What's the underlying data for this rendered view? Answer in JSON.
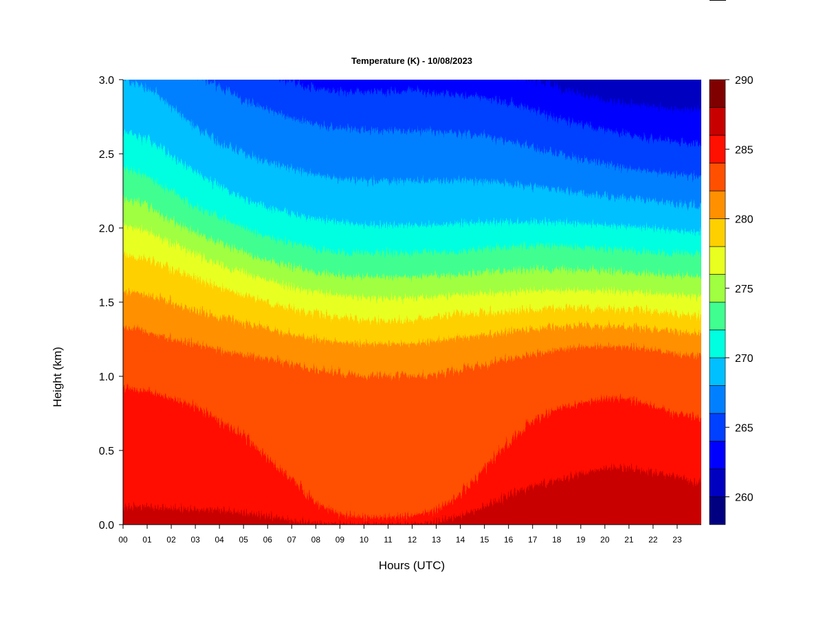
{
  "chart_data": {
    "type": "heatmap",
    "title": "Temperature (K) - 10/08/2023",
    "xlabel": "Hours (UTC)",
    "ylabel": "Height (km)",
    "x_ticks": [
      "00",
      "01",
      "02",
      "03",
      "04",
      "05",
      "06",
      "07",
      "08",
      "09",
      "10",
      "11",
      "12",
      "13",
      "14",
      "15",
      "16",
      "17",
      "18",
      "19",
      "20",
      "21",
      "22",
      "23"
    ],
    "x_range": [
      0,
      24
    ],
    "y_ticks": [
      "0.0",
      "0.5",
      "1.0",
      "1.5",
      "2.0",
      "2.5",
      "3.0"
    ],
    "y_range": [
      0,
      3.0
    ],
    "colorbar": {
      "label_values": [
        "260",
        "265",
        "270",
        "275",
        "280",
        "285",
        "290"
      ],
      "range": [
        258,
        290
      ],
      "levels": [
        258,
        260,
        262,
        264,
        266,
        268,
        270,
        272,
        274,
        276,
        278,
        280,
        282,
        284,
        286,
        288,
        290
      ],
      "colors": [
        "#000080",
        "#0000c0",
        "#0000ff",
        "#0040ff",
        "#0080ff",
        "#00c0ff",
        "#00ffe0",
        "#40ff90",
        "#a0ff40",
        "#e8ff20",
        "#ffd000",
        "#ff9000",
        "#ff5000",
        "#ff1000",
        "#c80000",
        "#800000"
      ]
    },
    "isotherm_heights_km": {
      "hours": [
        0,
        1,
        2,
        3,
        4,
        5,
        6,
        7,
        8,
        9,
        10,
        11,
        12,
        13,
        14,
        15,
        16,
        17,
        18,
        19,
        20,
        21,
        22,
        23,
        24
      ],
      "levels": {
        "288": [
          0,
          0,
          0,
          0,
          0,
          0,
          0,
          0,
          0,
          0,
          0,
          0,
          0,
          0,
          0,
          0.02,
          0.04,
          0.06,
          0.08,
          0.1,
          0.12,
          0.12,
          0.1,
          0.06,
          0.02
        ],
        "286": [
          0.12,
          0.12,
          0.11,
          0.1,
          0.1,
          0.08,
          0.06,
          0.03,
          0.01,
          0,
          0,
          0,
          0,
          0.02,
          0.06,
          0.12,
          0.2,
          0.26,
          0.3,
          0.35,
          0.38,
          0.38,
          0.36,
          0.32,
          0.25
        ],
        "284": [
          0.95,
          0.9,
          0.85,
          0.8,
          0.7,
          0.6,
          0.45,
          0.3,
          0.15,
          0.07,
          0.05,
          0.05,
          0.06,
          0.1,
          0.2,
          0.38,
          0.55,
          0.7,
          0.78,
          0.82,
          0.85,
          0.85,
          0.8,
          0.75,
          0.7
        ],
        "282": [
          1.35,
          1.3,
          1.25,
          1.22,
          1.18,
          1.15,
          1.12,
          1.08,
          1.05,
          1.02,
          1.0,
          1.0,
          1.0,
          1.02,
          1.05,
          1.08,
          1.12,
          1.15,
          1.18,
          1.2,
          1.2,
          1.2,
          1.18,
          1.15,
          1.12
        ],
        "280": [
          1.6,
          1.55,
          1.5,
          1.45,
          1.4,
          1.36,
          1.32,
          1.28,
          1.25,
          1.23,
          1.22,
          1.22,
          1.22,
          1.24,
          1.26,
          1.28,
          1.3,
          1.32,
          1.33,
          1.34,
          1.34,
          1.33,
          1.32,
          1.3,
          1.28
        ],
        "278": [
          1.85,
          1.8,
          1.72,
          1.66,
          1.6,
          1.55,
          1.5,
          1.46,
          1.42,
          1.4,
          1.38,
          1.38,
          1.38,
          1.4,
          1.42,
          1.43,
          1.44,
          1.45,
          1.46,
          1.46,
          1.46,
          1.45,
          1.44,
          1.42,
          1.4
        ],
        "276": [
          2.05,
          1.98,
          1.9,
          1.82,
          1.75,
          1.7,
          1.65,
          1.6,
          1.57,
          1.55,
          1.53,
          1.53,
          1.53,
          1.54,
          1.55,
          1.56,
          1.57,
          1.58,
          1.58,
          1.58,
          1.58,
          1.57,
          1.56,
          1.55,
          1.53
        ],
        "274": [
          2.25,
          2.15,
          2.05,
          1.97,
          1.9,
          1.84,
          1.78,
          1.74,
          1.7,
          1.68,
          1.67,
          1.67,
          1.67,
          1.68,
          1.69,
          1.7,
          1.71,
          1.72,
          1.72,
          1.72,
          1.71,
          1.7,
          1.69,
          1.68,
          1.66
        ],
        "272": [
          2.45,
          2.35,
          2.25,
          2.15,
          2.07,
          2.0,
          1.94,
          1.9,
          1.86,
          1.84,
          1.83,
          1.83,
          1.83,
          1.84,
          1.85,
          1.86,
          1.87,
          1.88,
          1.88,
          1.87,
          1.86,
          1.85,
          1.84,
          1.83,
          1.82
        ],
        "270": [
          2.7,
          2.6,
          2.48,
          2.38,
          2.28,
          2.2,
          2.14,
          2.1,
          2.06,
          2.04,
          2.02,
          2.02,
          2.02,
          2.02,
          2.03,
          2.04,
          2.04,
          2.04,
          2.04,
          2.03,
          2.02,
          2.01,
          2.0,
          1.98,
          1.96
        ],
        "268": [
          3.05,
          2.95,
          2.82,
          2.68,
          2.58,
          2.5,
          2.44,
          2.4,
          2.36,
          2.33,
          2.32,
          2.32,
          2.32,
          2.32,
          2.32,
          2.32,
          2.3,
          2.28,
          2.26,
          2.24,
          2.22,
          2.2,
          2.18,
          2.16,
          2.14
        ],
        "266": [
          3.2,
          3.2,
          3.15,
          3.05,
          2.95,
          2.86,
          2.8,
          2.74,
          2.7,
          2.67,
          2.66,
          2.66,
          2.66,
          2.65,
          2.64,
          2.62,
          2.58,
          2.55,
          2.5,
          2.46,
          2.43,
          2.4,
          2.38,
          2.36,
          2.34
        ],
        "264": [
          3.4,
          3.4,
          3.4,
          3.35,
          3.25,
          3.15,
          3.05,
          2.98,
          2.94,
          2.92,
          2.92,
          2.92,
          2.92,
          2.91,
          2.9,
          2.88,
          2.84,
          2.8,
          2.74,
          2.7,
          2.66,
          2.63,
          2.6,
          2.58,
          2.56
        ],
        "262": [
          3.6,
          3.6,
          3.6,
          3.6,
          3.5,
          3.4,
          3.3,
          3.2,
          3.15,
          3.12,
          3.12,
          3.12,
          3.12,
          3.12,
          3.12,
          3.1,
          3.05,
          3.0,
          2.95,
          2.9,
          2.86,
          2.84,
          2.82,
          2.8,
          2.8
        ]
      }
    },
    "grid": false,
    "legend": "colorbar-right"
  }
}
